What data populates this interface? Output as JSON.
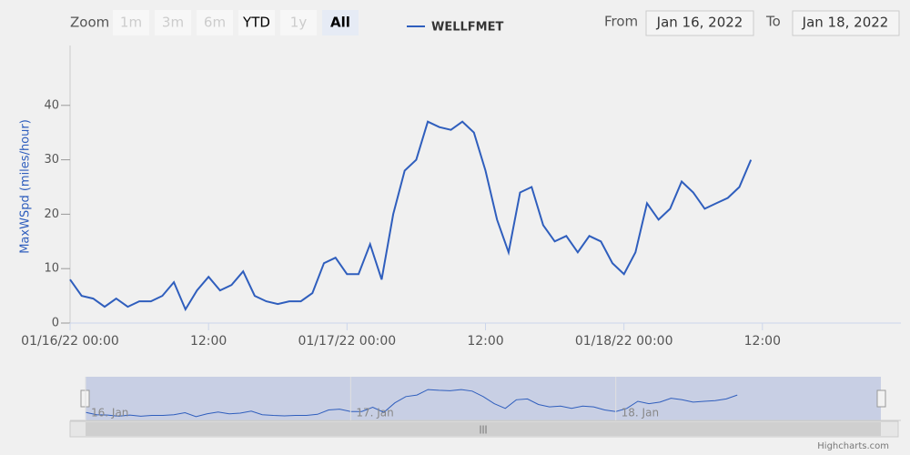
{
  "chart_data": {
    "type": "line",
    "y_label": "MaxWSpd (miles/hour)",
    "x": [
      "01/16/22 00:00",
      "01/16/22 01:00",
      "01/16/22 02:00",
      "01/16/22 03:00",
      "01/16/22 04:00",
      "01/16/22 05:00",
      "01/16/22 06:00",
      "01/16/22 07:00",
      "01/16/22 08:00",
      "01/16/22 09:00",
      "01/16/22 10:00",
      "01/16/22 11:00",
      "01/16/22 12:00",
      "01/16/22 13:00",
      "01/16/22 14:00",
      "01/16/22 15:00",
      "01/16/22 16:00",
      "01/16/22 17:00",
      "01/16/22 18:00",
      "01/16/22 19:00",
      "01/16/22 20:00",
      "01/16/22 21:00",
      "01/16/22 22:00",
      "01/16/22 23:00",
      "01/17/22 00:00",
      "01/17/22 01:00",
      "01/17/22 02:00",
      "01/17/22 03:00",
      "01/17/22 04:00",
      "01/17/22 05:00",
      "01/17/22 06:00",
      "01/17/22 07:00",
      "01/17/22 08:00",
      "01/17/22 09:00",
      "01/17/22 10:00",
      "01/17/22 11:00",
      "01/17/22 12:00",
      "01/17/22 13:00",
      "01/17/22 14:00",
      "01/17/22 15:00",
      "01/17/22 16:00",
      "01/17/22 17:00",
      "01/17/22 18:00",
      "01/17/22 19:00",
      "01/17/22 20:00",
      "01/17/22 21:00",
      "01/17/22 22:00",
      "01/17/22 23:00",
      "01/18/22 00:00",
      "01/18/22 01:00",
      "01/18/22 02:00",
      "01/18/22 03:00",
      "01/18/22 04:00",
      "01/18/22 05:00",
      "01/18/22 06:00",
      "01/18/22 07:00",
      "01/18/22 08:00",
      "01/18/22 09:00",
      "01/18/22 10:00",
      "01/18/22 11:00"
    ],
    "series": [
      {
        "name": "WELLFMET",
        "color": "#2f5ebd",
        "values": [
          8,
          5,
          4.5,
          3,
          4.5,
          3,
          4,
          4,
          5,
          7.5,
          2.5,
          6,
          8.5,
          6,
          7,
          9.5,
          5,
          4,
          3.5,
          4,
          4,
          5.5,
          11,
          12,
          9,
          9,
          14.5,
          8,
          20,
          28,
          30,
          37,
          36,
          35.5,
          37,
          35,
          28,
          19,
          13,
          24,
          25,
          18,
          15,
          16,
          13,
          16,
          15,
          11,
          9,
          13,
          22,
          19,
          21,
          26,
          24,
          21,
          22,
          23,
          25,
          30
        ]
      }
    ],
    "xlim": [
      "01/16/22 00:00",
      "01/19/22 00:00"
    ],
    "xticks": [
      {
        "value": "01/16/22 00:00",
        "label": "01/16/22 00:00"
      },
      {
        "value": "01/16/22 12:00",
        "label": "12:00"
      },
      {
        "value": "01/17/22 00:00",
        "label": "01/17/22 00:00"
      },
      {
        "value": "01/17/22 12:00",
        "label": "12:00"
      },
      {
        "value": "01/18/22 00:00",
        "label": "01/18/22 00:00"
      },
      {
        "value": "01/18/22 12:00",
        "label": "12:00"
      }
    ],
    "ylim": [
      0,
      51
    ],
    "yticks": [
      0,
      10,
      20,
      30,
      40
    ],
    "legend": "top"
  },
  "zoom": {
    "label": "Zoom",
    "buttons": [
      "1m",
      "3m",
      "6m",
      "YTD",
      "1y",
      "All"
    ],
    "selected": "All"
  },
  "range": {
    "from_label": "From",
    "from": "Jan 16, 2022",
    "to_label": "To",
    "to": "Jan 18, 2022"
  },
  "navigator": {
    "labels": [
      {
        "value": "01/16/22 00:00",
        "label": "16. Jan"
      },
      {
        "value": "01/17/22 00:00",
        "label": "17. Jan"
      },
      {
        "value": "01/18/22 00:00",
        "label": "18. Jan"
      }
    ]
  },
  "credits": "Highcharts.com"
}
